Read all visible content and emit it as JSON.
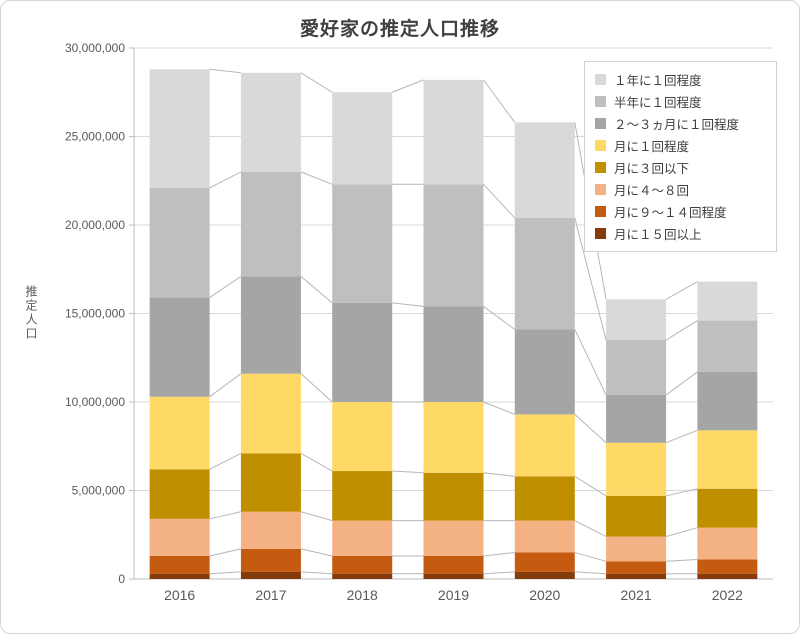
{
  "page": {
    "background": "#ffffff",
    "frame_border_color": "#d6d6d6"
  },
  "chart_data": {
    "type": "bar",
    "stacked": true,
    "title": "愛好家の推定人口推移",
    "ylabel": "推定人口",
    "xlabel": "",
    "categories": [
      "2016",
      "2017",
      "2018",
      "2019",
      "2020",
      "2021",
      "2022"
    ],
    "ylim": [
      0,
      30000000
    ],
    "y_tick_interval": 5000000,
    "y_tick_labels": [
      "0",
      "5,000,000",
      "10,000,000",
      "15,000,000",
      "20,000,000",
      "25,000,000",
      "30,000,000"
    ],
    "grid": true,
    "gridline_color": "#d9d9d9",
    "axis_line_color": "#bfbfbf",
    "series_line_color": "#b7b7b7",
    "legend_position": "top-right",
    "series": [
      {
        "name": "月に１５回以上",
        "color": "#843c0c",
        "values": [
          300000,
          400000,
          300000,
          300000,
          400000,
          300000,
          300000
        ]
      },
      {
        "name": "月に９～１４回程度",
        "color": "#c55a11",
        "values": [
          1000000,
          1300000,
          1000000,
          1000000,
          1100000,
          700000,
          800000
        ]
      },
      {
        "name": "月に４～８回",
        "color": "#f4b183",
        "values": [
          2100000,
          2100000,
          2000000,
          2000000,
          1800000,
          1400000,
          1800000
        ]
      },
      {
        "name": "月に３回以下",
        "color": "#bf8f00",
        "values": [
          2800000,
          3300000,
          2800000,
          2700000,
          2500000,
          2300000,
          2200000
        ]
      },
      {
        "name": "月に１回程度",
        "color": "#ffd966",
        "values": [
          4100000,
          4500000,
          3900000,
          4000000,
          3500000,
          3000000,
          3300000
        ]
      },
      {
        "name": "２～３ヵ月に１回程度",
        "color": "#a5a5a5",
        "values": [
          5600000,
          5500000,
          5600000,
          5400000,
          4800000,
          2700000,
          3300000
        ]
      },
      {
        "name": "半年に１回程度",
        "color": "#bfbfbf",
        "values": [
          6200000,
          5900000,
          6700000,
          6900000,
          6300000,
          3100000,
          2900000
        ]
      },
      {
        "name": "１年に１回程度",
        "color": "#d9d9d9",
        "values": [
          6700000,
          5600000,
          5200000,
          5900000,
          5400000,
          2300000,
          2200000
        ]
      }
    ],
    "legend_labels_top_to_bottom": [
      "１年に１回程度",
      "半年に１回程度",
      "２～３ヵ月に１回程度",
      "月に１回程度",
      "月に３回以下",
      "月に４～８回",
      "月に９～１４回程度",
      "月に１５回以上"
    ]
  }
}
